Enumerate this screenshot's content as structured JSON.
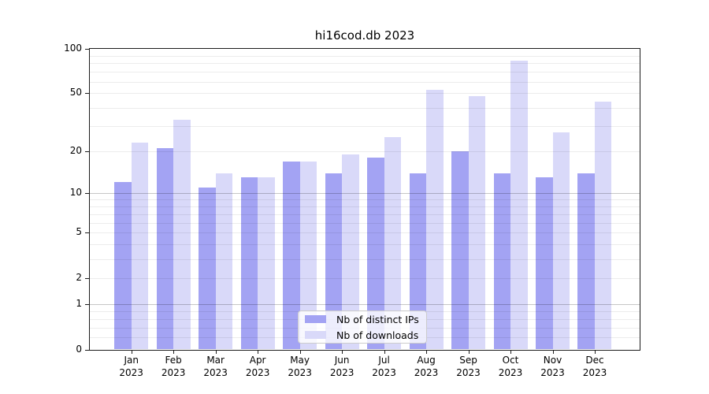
{
  "title": "hi16cod.db 2023",
  "chart_data": {
    "type": "bar",
    "title": "hi16cod.db 2023",
    "categories": [
      "Jan",
      "Feb",
      "Mar",
      "Apr",
      "May",
      "Jun",
      "Jul",
      "Aug",
      "Sep",
      "Oct",
      "Nov",
      "Dec"
    ],
    "year_label": "2023",
    "series": [
      {
        "name": "Nb of distinct IPs",
        "color": "#a3a3f3",
        "values": [
          12,
          21,
          11,
          13,
          17,
          14,
          18,
          14,
          20,
          14,
          13,
          14
        ]
      },
      {
        "name": "Nb of downloads",
        "color": "#d9d9f9",
        "values": [
          23,
          33,
          14,
          13,
          17,
          19,
          25,
          53,
          48,
          83,
          27,
          44
        ]
      }
    ],
    "xlabel": "",
    "ylabel": "",
    "y_scale": "log10(value+1)",
    "ylim": [
      0,
      100
    ],
    "yticks": [
      0,
      1,
      2,
      5,
      10,
      20,
      50,
      100
    ],
    "minor_gridlines": [
      0.2,
      0.4,
      0.6,
      0.8,
      2,
      3,
      4,
      5,
      6,
      7,
      8,
      9,
      20,
      30,
      40,
      50,
      60,
      70,
      80,
      90
    ],
    "decade_gridlines": [
      1,
      10
    ],
    "grid": "on",
    "legend_position": "lower center"
  }
}
